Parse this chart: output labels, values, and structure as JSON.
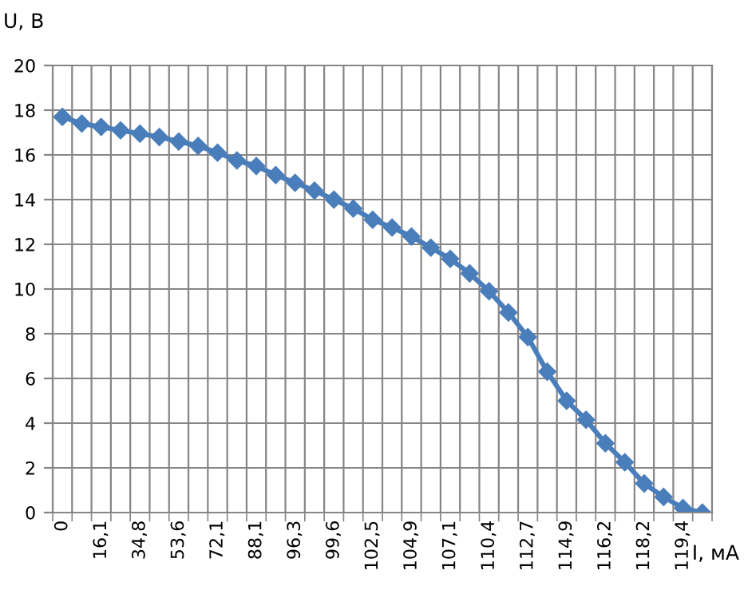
{
  "chart_data": {
    "type": "line",
    "ylabel": "U, В",
    "xlabel": "I, мА",
    "categories": [
      "0",
      null,
      "16,1",
      null,
      "34,8",
      null,
      "53,6",
      null,
      "72,1",
      null,
      "88,1",
      null,
      "96,3",
      null,
      "99,6",
      null,
      "102,5",
      null,
      "104,9",
      null,
      "107,1",
      null,
      "110,4",
      null,
      "112,7",
      null,
      "114,9",
      null,
      "116,2",
      null,
      "118,2",
      null,
      "119,4",
      null
    ],
    "series": [
      {
        "color": "#4a7ebb",
        "values": [
          17.7,
          17.4,
          17.25,
          17.1,
          16.95,
          16.8,
          16.6,
          16.4,
          16.1,
          15.75,
          15.5,
          15.1,
          14.75,
          14.4,
          14.0,
          13.6,
          13.1,
          12.75,
          12.35,
          11.85,
          11.35,
          10.7,
          9.9,
          8.95,
          7.85,
          6.3,
          5.0,
          4.15,
          3.1,
          2.25,
          1.3,
          0.7,
          0.2,
          0.0
        ]
      }
    ],
    "ylim": [
      0,
      20
    ],
    "yticks": [
      0,
      2,
      4,
      6,
      8,
      10,
      12,
      14,
      16,
      18,
      20
    ],
    "grid": true,
    "marker": "diamond",
    "line_style": "solid"
  }
}
